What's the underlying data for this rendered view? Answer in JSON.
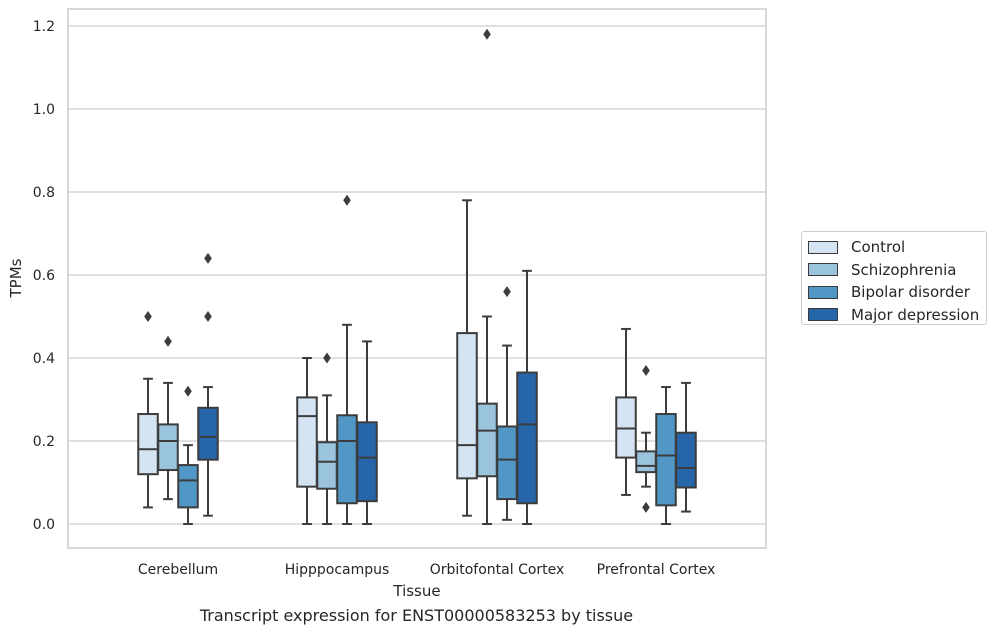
{
  "chart_data": {
    "type": "box",
    "title": "",
    "caption": "Transcript expression for ENST00000583253 by tissue",
    "xlabel": "Tissue",
    "ylabel": "TPMs",
    "ylim": [
      -0.055,
      1.24
    ],
    "yticks": [
      "0.0",
      "0.2",
      "0.4",
      "0.6",
      "0.8",
      "1.0",
      "1.2"
    ],
    "grid": true,
    "legend_position": "right",
    "categories": [
      "Cerebellum",
      "Hipppocampus",
      "Orbitofontal Cortex",
      "Prefrontal Cortex"
    ],
    "series": [
      {
        "name": "Control",
        "color": "#d4e4f2",
        "boxes": [
          {
            "whislo": 0.04,
            "q1": 0.12,
            "med": 0.18,
            "q3": 0.265,
            "whishi": 0.35,
            "fliers": [
              0.5
            ]
          },
          {
            "whislo": 0.0,
            "q1": 0.09,
            "med": 0.26,
            "q3": 0.305,
            "whishi": 0.4,
            "fliers": []
          },
          {
            "whislo": 0.02,
            "q1": 0.11,
            "med": 0.19,
            "q3": 0.46,
            "whishi": 0.78,
            "fliers": []
          },
          {
            "whislo": 0.07,
            "q1": 0.16,
            "med": 0.23,
            "q3": 0.305,
            "whishi": 0.47,
            "fliers": []
          }
        ]
      },
      {
        "name": "Schizophrenia",
        "color": "#9ac4dd",
        "boxes": [
          {
            "whislo": 0.06,
            "q1": 0.13,
            "med": 0.2,
            "q3": 0.24,
            "whishi": 0.34,
            "fliers": [
              0.44
            ]
          },
          {
            "whislo": 0.0,
            "q1": 0.085,
            "med": 0.15,
            "q3": 0.197,
            "whishi": 0.31,
            "fliers": [
              0.4
            ]
          },
          {
            "whislo": 0.0,
            "q1": 0.115,
            "med": 0.225,
            "q3": 0.29,
            "whishi": 0.5,
            "fliers": [
              1.18
            ]
          },
          {
            "whislo": 0.09,
            "q1": 0.125,
            "med": 0.14,
            "q3": 0.175,
            "whishi": 0.22,
            "fliers": [
              0.37,
              0.04
            ]
          }
        ]
      },
      {
        "name": "Bipolar disorder",
        "color": "#5097c6",
        "boxes": [
          {
            "whislo": 0.0,
            "q1": 0.04,
            "med": 0.105,
            "q3": 0.142,
            "whishi": 0.19,
            "fliers": [
              0.32
            ]
          },
          {
            "whislo": 0.0,
            "q1": 0.05,
            "med": 0.2,
            "q3": 0.262,
            "whishi": 0.48,
            "fliers": [
              0.78
            ]
          },
          {
            "whislo": 0.01,
            "q1": 0.06,
            "med": 0.155,
            "q3": 0.235,
            "whishi": 0.43,
            "fliers": [
              0.56
            ]
          },
          {
            "whislo": 0.0,
            "q1": 0.045,
            "med": 0.165,
            "q3": 0.265,
            "whishi": 0.33,
            "fliers": []
          }
        ]
      },
      {
        "name": "Major depression",
        "color": "#2565a8",
        "boxes": [
          {
            "whislo": 0.02,
            "q1": 0.155,
            "med": 0.21,
            "q3": 0.28,
            "whishi": 0.33,
            "fliers": [
              0.64,
              0.5
            ]
          },
          {
            "whislo": 0.0,
            "q1": 0.055,
            "med": 0.16,
            "q3": 0.245,
            "whishi": 0.44,
            "fliers": []
          },
          {
            "whislo": 0.0,
            "q1": 0.05,
            "med": 0.24,
            "q3": 0.365,
            "whishi": 0.61,
            "fliers": []
          },
          {
            "whislo": 0.03,
            "q1": 0.088,
            "med": 0.135,
            "q3": 0.22,
            "whishi": 0.34,
            "fliers": []
          }
        ]
      }
    ]
  }
}
